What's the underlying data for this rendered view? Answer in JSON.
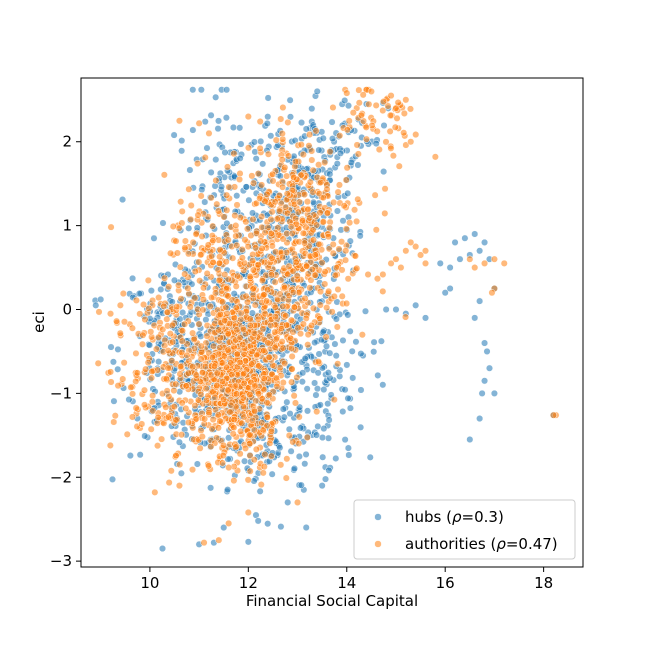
{
  "chart_data": {
    "type": "scatter",
    "xlabel": "Financial Social Capital",
    "ylabel": "eci",
    "xlim": [
      8.6,
      18.8
    ],
    "ylim": [
      -3.07,
      2.76
    ],
    "xticks": [
      10,
      12,
      14,
      16,
      18
    ],
    "yticks": [
      -3,
      -2,
      -1,
      0,
      1,
      2
    ],
    "xtick_labels": [
      "10",
      "12",
      "14",
      "16",
      "18"
    ],
    "ytick_labels": [
      "−3",
      "−2",
      "−1",
      "0",
      "1",
      "2"
    ],
    "grid": false,
    "legend_placement": "lower-right",
    "series": [
      {
        "name": "hubs (ρ=0.3)",
        "legend_prefix": "hubs (",
        "legend_symbol": "ρ",
        "legend_suffix": "=0.3)",
        "color": "#1f77b4",
        "clusters": [
          {
            "cx": 11.8,
            "cy": -0.6,
            "sx": 0.55,
            "sy": 0.45,
            "n": 420
          },
          {
            "cx": 10.6,
            "cy": -0.5,
            "sx": 0.6,
            "sy": 0.6,
            "n": 220
          },
          {
            "cx": 12.7,
            "cy": 0.4,
            "sx": 0.6,
            "sy": 0.7,
            "n": 260
          },
          {
            "cx": 13.2,
            "cy": 1.4,
            "sx": 0.5,
            "sy": 0.5,
            "n": 160
          },
          {
            "cx": 11.7,
            "cy": 1.2,
            "sx": 0.6,
            "sy": 0.7,
            "n": 150
          },
          {
            "cx": 12.4,
            "cy": -1.6,
            "sx": 0.7,
            "sy": 0.4,
            "n": 120
          },
          {
            "cx": 13.6,
            "cy": -0.8,
            "sx": 0.5,
            "sy": 0.5,
            "n": 90
          },
          {
            "cx": 14.0,
            "cy": 2.1,
            "sx": 0.4,
            "sy": 0.25,
            "n": 40
          }
        ],
        "points": [
          [
            16.2,
            0.8
          ],
          [
            16.4,
            0.85
          ],
          [
            16.6,
            0.9
          ],
          [
            16.8,
            0.8
          ],
          [
            16.9,
            0.6
          ],
          [
            16.7,
            0.7
          ],
          [
            16.5,
            0.65
          ],
          [
            16.3,
            0.6
          ],
          [
            16.1,
            0.5
          ],
          [
            15.9,
            0.55
          ],
          [
            16.8,
            -0.4
          ],
          [
            16.85,
            -0.5
          ],
          [
            16.9,
            -0.7
          ],
          [
            16.8,
            -0.85
          ],
          [
            16.75,
            -1.0
          ],
          [
            16.7,
            -1.3
          ],
          [
            16.5,
            -1.55
          ],
          [
            17.0,
            -1.0
          ],
          [
            16.7,
            0.1
          ],
          [
            16.6,
            -0.1
          ],
          [
            15.4,
            0.05
          ],
          [
            15.2,
            -0.05
          ],
          [
            15.0,
            0.0
          ],
          [
            14.8,
            0.0
          ],
          [
            15.6,
            -0.1
          ],
          [
            16.0,
            0.2
          ],
          [
            16.1,
            0.25
          ],
          [
            11.0,
            -2.8
          ],
          [
            11.3,
            -2.78
          ],
          [
            12.0,
            -2.77
          ],
          [
            12.2,
            -2.52
          ],
          [
            11.5,
            -2.6
          ],
          [
            12.8,
            -2.3
          ],
          [
            13.5,
            -2.1
          ],
          [
            18.2,
            -1.26
          ],
          [
            17.0,
            0.25
          ],
          [
            9.0,
            0.12
          ],
          [
            8.9,
            0.05
          ],
          [
            14.4,
            2.45
          ],
          [
            13.4,
            2.6
          ]
        ]
      },
      {
        "name": "authorities (ρ=0.47)",
        "legend_prefix": "authorities (",
        "legend_symbol": "ρ",
        "legend_suffix": "=0.47)",
        "color": "#ff7f0e",
        "clusters": [
          {
            "cx": 11.7,
            "cy": -0.7,
            "sx": 0.45,
            "sy": 0.4,
            "n": 520
          },
          {
            "cx": 10.3,
            "cy": -0.8,
            "sx": 0.55,
            "sy": 0.5,
            "n": 200
          },
          {
            "cx": 12.5,
            "cy": 0.2,
            "sx": 0.55,
            "sy": 0.5,
            "n": 300
          },
          {
            "cx": 12.9,
            "cy": 1.3,
            "sx": 0.45,
            "sy": 0.45,
            "n": 220
          },
          {
            "cx": 11.3,
            "cy": 0.5,
            "sx": 0.5,
            "sy": 0.5,
            "n": 160
          },
          {
            "cx": 14.6,
            "cy": 2.2,
            "sx": 0.5,
            "sy": 0.25,
            "n": 60
          },
          {
            "cx": 11.9,
            "cy": -1.4,
            "sx": 0.5,
            "sy": 0.3,
            "n": 120
          },
          {
            "cx": 13.6,
            "cy": 0.6,
            "sx": 0.5,
            "sy": 0.4,
            "n": 90
          }
        ],
        "points": [
          [
            15.0,
            0.6
          ],
          [
            15.2,
            0.7
          ],
          [
            15.4,
            0.75
          ],
          [
            15.5,
            0.65
          ],
          [
            15.3,
            0.8
          ],
          [
            15.1,
            0.5
          ],
          [
            14.9,
            0.55
          ],
          [
            15.6,
            0.7
          ],
          [
            16.8,
            0.55
          ],
          [
            17.0,
            0.6
          ],
          [
            17.2,
            0.55
          ],
          [
            16.6,
            0.5
          ],
          [
            16.5,
            0.6
          ],
          [
            15.8,
            1.82
          ],
          [
            15.3,
            2.0
          ],
          [
            15.0,
            2.4
          ],
          [
            15.2,
            2.5
          ],
          [
            14.9,
            2.55
          ],
          [
            14.5,
            2.6
          ],
          [
            14.0,
            2.58
          ],
          [
            18.25,
            -1.26
          ],
          [
            18.2,
            -1.26
          ],
          [
            10.1,
            -2.18
          ],
          [
            10.6,
            -2.1
          ],
          [
            11.6,
            -2.55
          ],
          [
            11.1,
            -2.78
          ],
          [
            11.4,
            -2.75
          ],
          [
            12.0,
            -2.42
          ],
          [
            13.0,
            -2.3
          ],
          [
            9.2,
            -0.05
          ],
          [
            9.4,
            0.05
          ],
          [
            10.6,
            2.25
          ],
          [
            11.0,
            2.22
          ],
          [
            11.2,
            2.1
          ],
          [
            12.0,
            2.3
          ],
          [
            17.0,
            0.25
          ],
          [
            16.95,
            0.2
          ],
          [
            15.6,
            0.55
          ],
          [
            14.2,
            1.05
          ],
          [
            14.6,
            0.95
          ]
        ]
      }
    ]
  }
}
